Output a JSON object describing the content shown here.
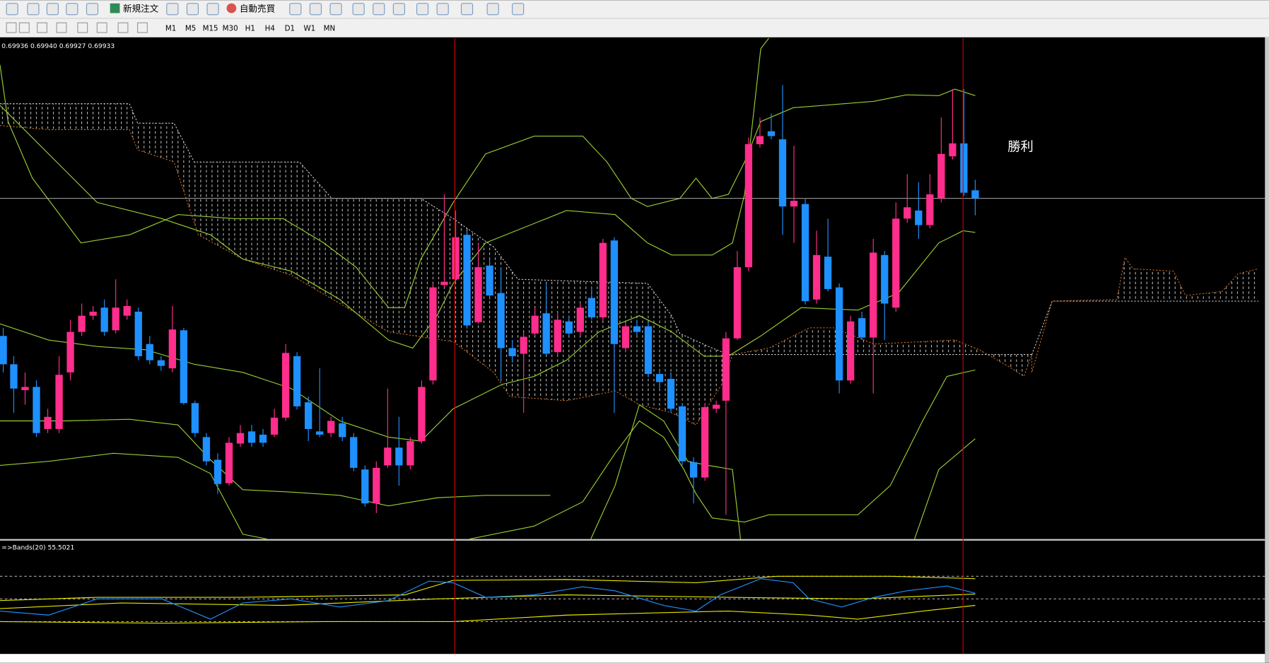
{
  "toolbar": {
    "new_order": "新規注文",
    "auto_trading": "自動売買",
    "timeframes": [
      "M1",
      "M5",
      "M15",
      "M30",
      "H1",
      "H4",
      "D1",
      "W1",
      "MN"
    ]
  },
  "chart_window": {
    "ohlc": "0.69936 0.69940 0.69927 0.69933",
    "annotation": "勝利"
  },
  "indicator_window": {
    "label": "=>Bands(20) 55.5021"
  }
}
